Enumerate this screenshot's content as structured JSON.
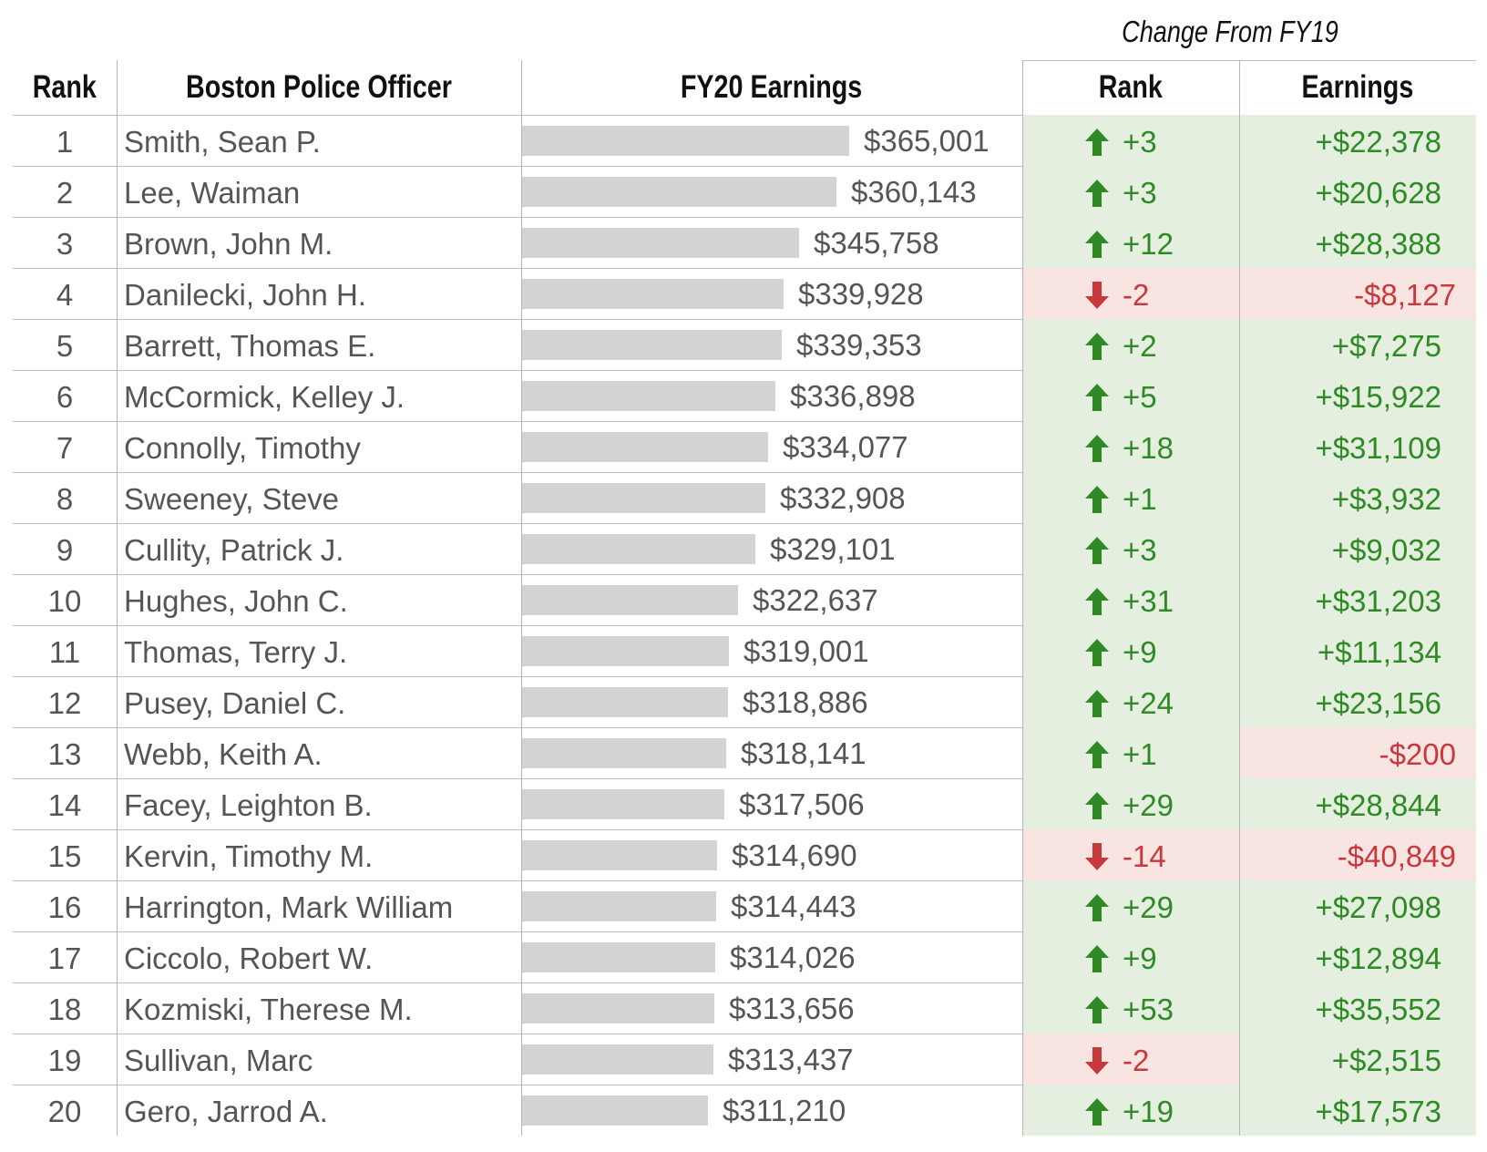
{
  "colors": {
    "positive_bg": "#e4efe0",
    "negative_bg": "#f8e5e2",
    "positive_text": "#2f8a26",
    "negative_text": "#c8383c",
    "bar": "#d3d3d3",
    "grid": "#bdbdbd"
  },
  "header": {
    "supertitle": "Change From FY19",
    "col_rank": "Rank",
    "col_officer": "Boston Police Officer",
    "col_earnings": "FY20 Earnings",
    "col_rank_change": "Rank",
    "col_earnings_change": "Earnings"
  },
  "chart_data": {
    "type": "table",
    "columns": [
      "Rank",
      "Boston Police Officer",
      "FY20 Earnings",
      "Rank",
      "Earnings"
    ],
    "rows": [
      {
        "rank": "1",
        "name": "Smith, Sean P.",
        "value": 365001,
        "earnings": "$365,001",
        "rank_change": "+3",
        "rank_dir": "up",
        "earn_change": "+$22,378",
        "earn_dir": "up"
      },
      {
        "rank": "2",
        "name": "Lee, Waiman",
        "value": 360143,
        "earnings": "$360,143",
        "rank_change": "+3",
        "rank_dir": "up",
        "earn_change": "+$20,628",
        "earn_dir": "up"
      },
      {
        "rank": "3",
        "name": "Brown, John M.",
        "value": 345758,
        "earnings": "$345,758",
        "rank_change": "+12",
        "rank_dir": "up",
        "earn_change": "+$28,388",
        "earn_dir": "up"
      },
      {
        "rank": "4",
        "name": "Danilecki, John H.",
        "value": 339928,
        "earnings": "$339,928",
        "rank_change": "-2",
        "rank_dir": "down",
        "earn_change": "-$8,127",
        "earn_dir": "down"
      },
      {
        "rank": "5",
        "name": "Barrett, Thomas E.",
        "value": 339353,
        "earnings": "$339,353",
        "rank_change": "+2",
        "rank_dir": "up",
        "earn_change": "+$7,275",
        "earn_dir": "up"
      },
      {
        "rank": "6",
        "name": "McCormick, Kelley J.",
        "value": 336898,
        "earnings": "$336,898",
        "rank_change": "+5",
        "rank_dir": "up",
        "earn_change": "+$15,922",
        "earn_dir": "up"
      },
      {
        "rank": "7",
        "name": "Connolly, Timothy",
        "value": 334077,
        "earnings": "$334,077",
        "rank_change": "+18",
        "rank_dir": "up",
        "earn_change": "+$31,109",
        "earn_dir": "up"
      },
      {
        "rank": "8",
        "name": "Sweeney, Steve",
        "value": 332908,
        "earnings": "$332,908",
        "rank_change": "+1",
        "rank_dir": "up",
        "earn_change": "+$3,932",
        "earn_dir": "up"
      },
      {
        "rank": "9",
        "name": "Cullity, Patrick J.",
        "value": 329101,
        "earnings": "$329,101",
        "rank_change": "+3",
        "rank_dir": "up",
        "earn_change": "+$9,032",
        "earn_dir": "up"
      },
      {
        "rank": "10",
        "name": "Hughes, John C.",
        "value": 322637,
        "earnings": "$322,637",
        "rank_change": "+31",
        "rank_dir": "up",
        "earn_change": "+$31,203",
        "earn_dir": "up"
      },
      {
        "rank": "11",
        "name": "Thomas, Terry J.",
        "value": 319001,
        "earnings": "$319,001",
        "rank_change": "+9",
        "rank_dir": "up",
        "earn_change": "+$11,134",
        "earn_dir": "up"
      },
      {
        "rank": "12",
        "name": "Pusey, Daniel C.",
        "value": 318886,
        "earnings": "$318,886",
        "rank_change": "+24",
        "rank_dir": "up",
        "earn_change": "+$23,156",
        "earn_dir": "up"
      },
      {
        "rank": "13",
        "name": "Webb, Keith A.",
        "value": 318141,
        "earnings": "$318,141",
        "rank_change": "+1",
        "rank_dir": "up",
        "earn_change": "-$200",
        "earn_dir": "down"
      },
      {
        "rank": "14",
        "name": "Facey, Leighton B.",
        "value": 317506,
        "earnings": "$317,506",
        "rank_change": "+29",
        "rank_dir": "up",
        "earn_change": "+$28,844",
        "earn_dir": "up"
      },
      {
        "rank": "15",
        "name": "Kervin, Timothy M.",
        "value": 314690,
        "earnings": "$314,690",
        "rank_change": "-14",
        "rank_dir": "down",
        "earn_change": "-$40,849",
        "earn_dir": "down"
      },
      {
        "rank": "16",
        "name": "Harrington, Mark William",
        "value": 314443,
        "earnings": "$314,443",
        "rank_change": "+29",
        "rank_dir": "up",
        "earn_change": "+$27,098",
        "earn_dir": "up"
      },
      {
        "rank": "17",
        "name": "Ciccolo, Robert W.",
        "value": 314026,
        "earnings": "$314,026",
        "rank_change": "+9",
        "rank_dir": "up",
        "earn_change": "+$12,894",
        "earn_dir": "up"
      },
      {
        "rank": "18",
        "name": "Kozmiski, Therese M.",
        "value": 313656,
        "earnings": "$313,656",
        "rank_change": "+53",
        "rank_dir": "up",
        "earn_change": "+$35,552",
        "earn_dir": "up"
      },
      {
        "rank": "19",
        "name": "Sullivan, Marc",
        "value": 313437,
        "earnings": "$313,437",
        "rank_change": "-2",
        "rank_dir": "down",
        "earn_change": "+$2,515",
        "earn_dir": "up"
      },
      {
        "rank": "20",
        "name": "Gero, Jarrod A.",
        "value": 311210,
        "earnings": "$311,210",
        "rank_change": "+19",
        "rank_dir": "up",
        "earn_change": "+$17,573",
        "earn_dir": "up"
      }
    ]
  }
}
